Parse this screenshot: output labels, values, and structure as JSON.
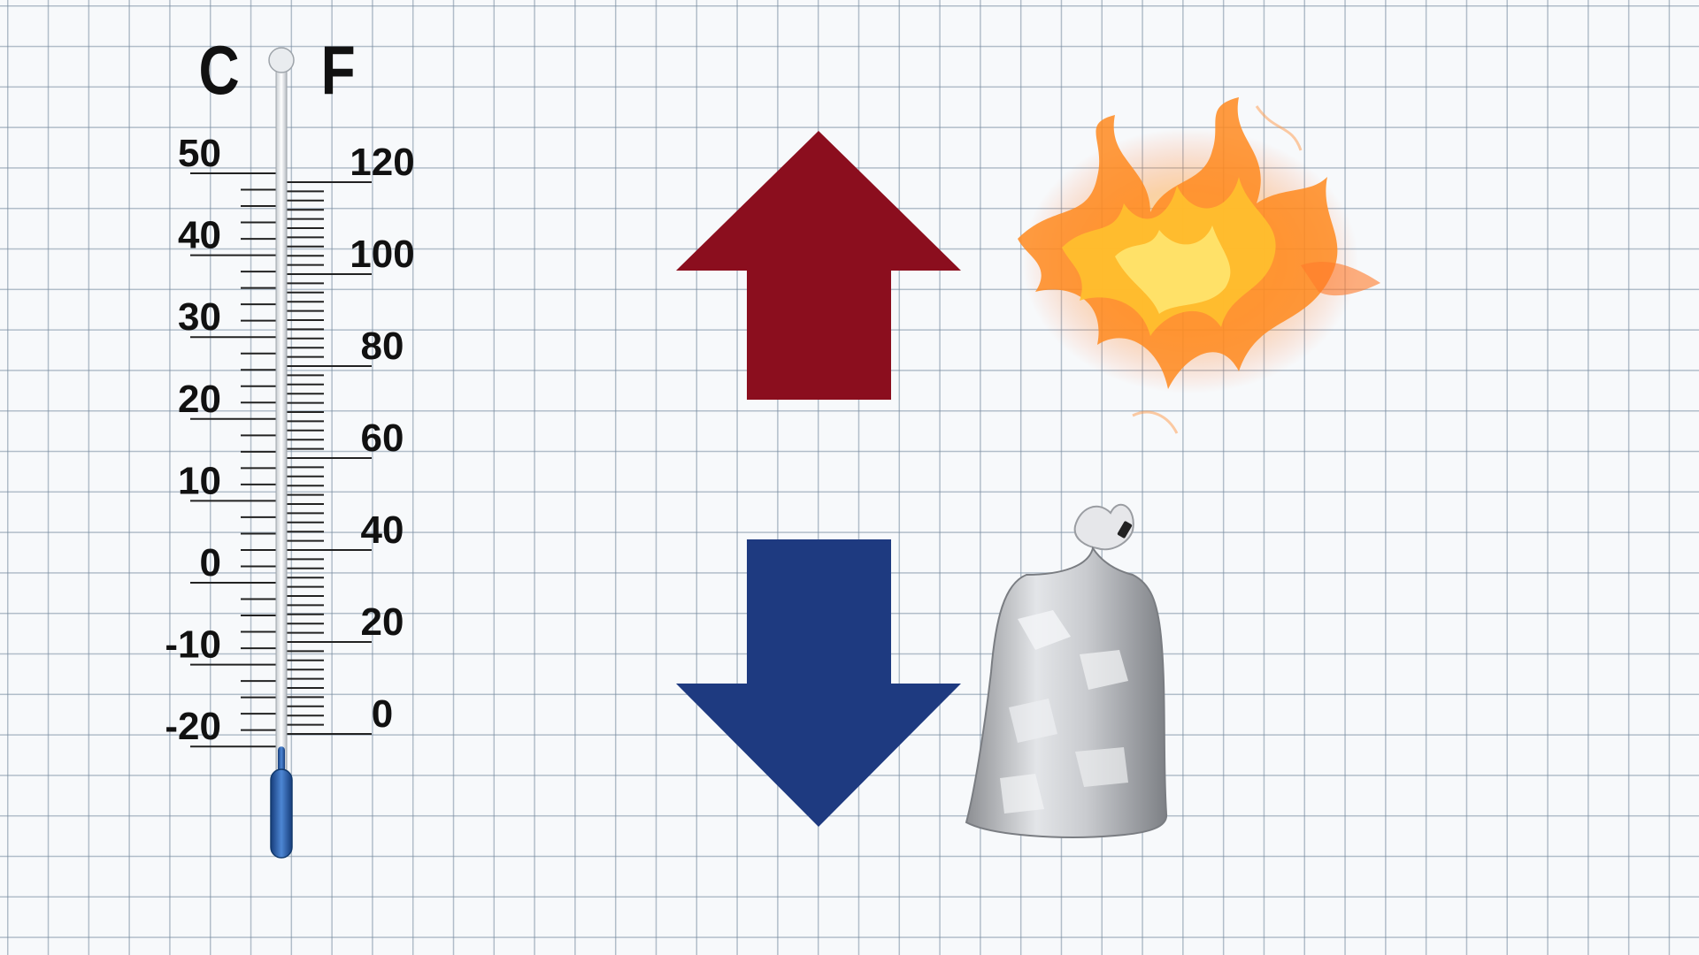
{
  "thermometer": {
    "celsius_unit": "C",
    "fahrenheit_unit": "F",
    "celsius_labels": [
      "50",
      "40",
      "30",
      "20",
      "10",
      "0",
      "-10",
      "-20"
    ],
    "fahrenheit_labels": [
      "120",
      "100",
      "80",
      "60",
      "40",
      "20",
      "0"
    ],
    "reading_celsius": -20,
    "liquid_color": "#2e5fa8"
  },
  "arrows": {
    "up_color": "#8b0e1e",
    "down_color": "#1e3a80"
  },
  "icons": {
    "hot": "fire-icon",
    "cold": "ice-bag-icon"
  }
}
